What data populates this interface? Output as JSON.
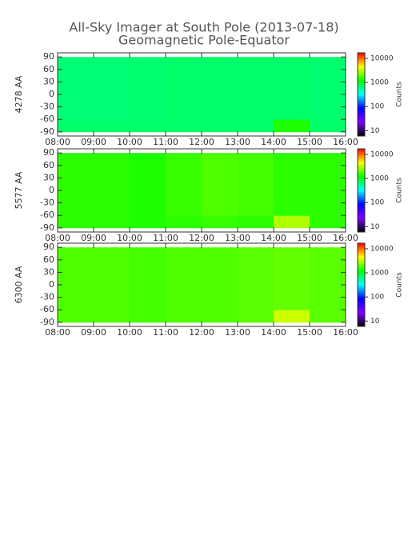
{
  "chart_data": [
    {
      "type": "heatmap",
      "title": "All-Sky Imager at South Pole (2013-07-18)",
      "subtitle": "Geomagnetic Pole-Equator",
      "ylabel": "4278 AA",
      "colorbar_label": "Counts",
      "x_edges": [
        8,
        9,
        10,
        11,
        12,
        13,
        14,
        15,
        16
      ],
      "y_edges": [
        -90,
        -60,
        -30,
        0,
        30,
        60,
        90
      ],
      "z": [
        [
          700,
          700,
          700,
          700,
          700,
          700,
          1400,
          700
        ],
        [
          650,
          650,
          680,
          700,
          700,
          700,
          700,
          680
        ],
        [
          650,
          650,
          680,
          700,
          700,
          700,
          700,
          680
        ],
        [
          650,
          650,
          680,
          700,
          700,
          700,
          700,
          680
        ],
        [
          650,
          650,
          680,
          700,
          700,
          700,
          700,
          680
        ],
        [
          650,
          650,
          680,
          700,
          700,
          700,
          700,
          680
        ]
      ],
      "xlim": [
        8,
        16
      ],
      "xticks": [
        {
          "value": 8,
          "label": "08:00"
        },
        {
          "value": 9,
          "label": "09:00"
        },
        {
          "value": 10,
          "label": "10:00"
        },
        {
          "value": 11,
          "label": "11:00"
        },
        {
          "value": 12,
          "label": "12:00"
        },
        {
          "value": 13,
          "label": "13:00"
        },
        {
          "value": 14,
          "label": "14:00"
        },
        {
          "value": 15,
          "label": "15:00"
        },
        {
          "value": 16,
          "label": "16:00"
        }
      ],
      "ylim": [
        -100,
        100
      ],
      "yticks": [
        -90,
        -60,
        -30,
        0,
        30,
        60,
        90
      ],
      "zscale": "log",
      "zlim": [
        6,
        17000
      ],
      "zticks": [
        10,
        100,
        1000,
        10000
      ],
      "colormap": [
        "#000000",
        "#7f00ff",
        "#0000ff",
        "#00ffff",
        "#00ff00",
        "#ffff00",
        "#ff0000"
      ]
    },
    {
      "type": "heatmap",
      "ylabel": "5577 AA",
      "colorbar_label": "Counts",
      "x_edges": [
        8,
        9,
        10,
        11,
        12,
        13,
        14,
        15,
        16
      ],
      "y_edges": [
        -90,
        -60,
        -30,
        0,
        30,
        60,
        90
      ],
      "z": [
        [
          1500,
          1500,
          1400,
          1500,
          1600,
          1500,
          3000,
          1500
        ],
        [
          1500,
          1500,
          1400,
          1600,
          1800,
          1700,
          1500,
          1500
        ],
        [
          1500,
          1500,
          1400,
          1600,
          1800,
          1700,
          1500,
          1500
        ],
        [
          1500,
          1500,
          1400,
          1600,
          1800,
          1700,
          1500,
          1500
        ],
        [
          1500,
          1500,
          1400,
          1600,
          1800,
          1700,
          1500,
          1500
        ],
        [
          1500,
          1500,
          1400,
          1600,
          1800,
          1700,
          1500,
          1500
        ]
      ],
      "xlim": [
        8,
        16
      ],
      "xticks": [
        {
          "value": 8,
          "label": "08:00"
        },
        {
          "value": 9,
          "label": "09:00"
        },
        {
          "value": 10,
          "label": "10:00"
        },
        {
          "value": 11,
          "label": "11:00"
        },
        {
          "value": 12,
          "label": "12:00"
        },
        {
          "value": 13,
          "label": "13:00"
        },
        {
          "value": 14,
          "label": "14:00"
        },
        {
          "value": 15,
          "label": "15:00"
        },
        {
          "value": 16,
          "label": "16:00"
        }
      ],
      "ylim": [
        -100,
        100
      ],
      "yticks": [
        -90,
        -60,
        -30,
        0,
        30,
        60,
        90
      ],
      "zscale": "log",
      "zlim": [
        6,
        17000
      ],
      "zticks": [
        10,
        100,
        1000,
        10000
      ],
      "colormap": [
        "#000000",
        "#7f00ff",
        "#0000ff",
        "#00ffff",
        "#00ff00",
        "#ffff00",
        "#ff0000"
      ]
    },
    {
      "type": "heatmap",
      "ylabel": "6300 AA",
      "colorbar_label": "Counts",
      "x_edges": [
        8,
        9,
        10,
        11,
        12,
        13,
        14,
        15,
        16
      ],
      "y_edges": [
        -90,
        -60,
        -30,
        0,
        30,
        60,
        90
      ],
      "z": [
        [
          1800,
          1800,
          1700,
          1800,
          1800,
          1900,
          3500,
          1900
        ],
        [
          1800,
          1800,
          1700,
          1800,
          1800,
          1900,
          2000,
          1900
        ],
        [
          1800,
          1800,
          1700,
          1800,
          1800,
          1900,
          2000,
          1900
        ],
        [
          1800,
          1800,
          1700,
          1800,
          1800,
          1900,
          2000,
          1900
        ],
        [
          1800,
          1800,
          1700,
          1800,
          1800,
          1900,
          2000,
          1900
        ],
        [
          1800,
          1800,
          1700,
          1800,
          1800,
          1900,
          2000,
          1900
        ]
      ],
      "xlim": [
        8,
        16
      ],
      "xticks": [
        {
          "value": 8,
          "label": "08:00"
        },
        {
          "value": 9,
          "label": "09:00"
        },
        {
          "value": 10,
          "label": "10:00"
        },
        {
          "value": 11,
          "label": "11:00"
        },
        {
          "value": 12,
          "label": "12:00"
        },
        {
          "value": 13,
          "label": "13:00"
        },
        {
          "value": 14,
          "label": "14:00"
        },
        {
          "value": 15,
          "label": "15:00"
        },
        {
          "value": 16,
          "label": "16:00"
        }
      ],
      "ylim": [
        -100,
        100
      ],
      "yticks": [
        -90,
        -60,
        -30,
        0,
        30,
        60,
        90
      ],
      "zscale": "log",
      "zlim": [
        6,
        17000
      ],
      "zticks": [
        10,
        100,
        1000,
        10000
      ],
      "colormap": [
        "#000000",
        "#7f00ff",
        "#0000ff",
        "#00ffff",
        "#00ff00",
        "#ffff00",
        "#ff0000"
      ]
    }
  ]
}
